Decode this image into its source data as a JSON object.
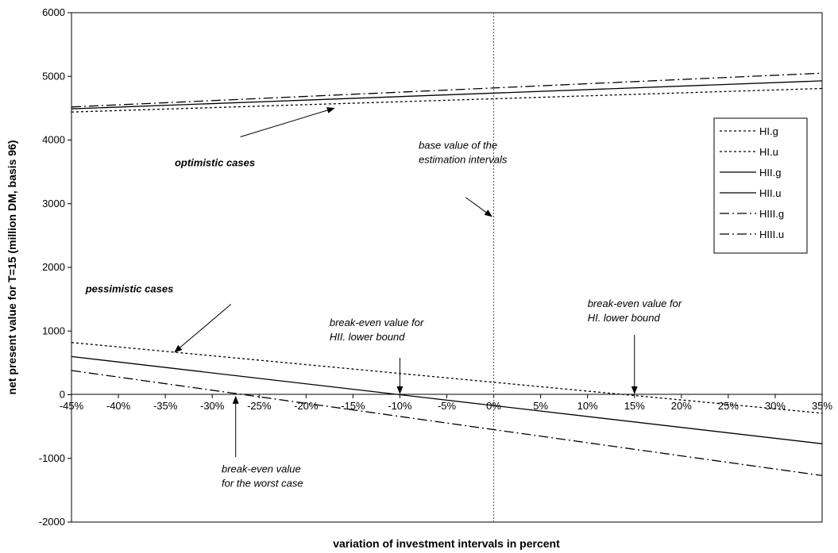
{
  "chart_data": {
    "type": "line",
    "title": "",
    "xlabel": "variation of investment intervals in percent",
    "ylabel": "net present value for T=15 (million DM, basis 96)",
    "x": [
      -45,
      35
    ],
    "xlim": [
      -45,
      35
    ],
    "ylim": [
      -2000,
      6000
    ],
    "x_ticks": [
      -45,
      -40,
      -35,
      -30,
      -25,
      -20,
      -15,
      -10,
      -5,
      0,
      5,
      10,
      15,
      20,
      25,
      30,
      35
    ],
    "x_tick_labels": [
      "-45%",
      "-40%",
      "-35%",
      "-30%",
      "-25%",
      "-20%",
      "-15%",
      "-10%",
      "-5%",
      "0%",
      "5%",
      "10%",
      "15%",
      "20%",
      "25%",
      "30%",
      "35%"
    ],
    "y_ticks": [
      -2000,
      -1000,
      0,
      1000,
      2000,
      3000,
      4000,
      5000,
      6000
    ],
    "y_tick_labels": [
      "-2000",
      "-1000",
      "0",
      "1000",
      "2000",
      "3000",
      "4000",
      "5000",
      "6000"
    ],
    "grid": false,
    "legend_position": "right",
    "series": [
      {
        "name": "HI.g",
        "style": "dotted",
        "values": [
          4440,
          4810
        ]
      },
      {
        "name": "HI.u",
        "style": "dotted",
        "values": [
          820,
          -290
        ]
      },
      {
        "name": "HII.g",
        "style": "solid",
        "values": [
          4490,
          4930
        ]
      },
      {
        "name": "HII.u",
        "style": "solid",
        "values": [
          600,
          -770
        ]
      },
      {
        "name": "HIII.g",
        "style": "dashdot",
        "values": [
          4520,
          5050
        ]
      },
      {
        "name": "HIII.u",
        "style": "dashdot",
        "values": [
          380,
          -1270
        ]
      }
    ],
    "reference_line": {
      "x": 0
    },
    "annotations": [
      {
        "lines": [
          "optimistic cases"
        ],
        "bold": true,
        "text_at": [
          -34,
          3590
        ],
        "arrow_from": [
          -27,
          4050
        ],
        "arrow_to": [
          -17,
          4500
        ]
      },
      {
        "lines": [
          "base value of the",
          "estimation intervals"
        ],
        "bold": false,
        "text_at": [
          -8,
          3860
        ],
        "arrow_from": [
          -3,
          3100
        ],
        "arrow_to": [
          -0.2,
          2800
        ]
      },
      {
        "lines": [
          "pessimistic cases"
        ],
        "bold": true,
        "text_at": [
          -43.5,
          1610
        ],
        "arrow_from": [
          -28,
          1420
        ],
        "arrow_to": [
          -34,
          670
        ]
      },
      {
        "lines": [
          "break-even value for",
          "HII. lower bound"
        ],
        "bold": false,
        "text_at": [
          -17.5,
          1080
        ],
        "arrow_from": [
          -10,
          580
        ],
        "arrow_to": [
          -10,
          20
        ]
      },
      {
        "lines": [
          "break-even value for",
          "HI. lower bound"
        ],
        "bold": false,
        "text_at": [
          10,
          1380
        ],
        "arrow_from": [
          15,
          940
        ],
        "arrow_to": [
          15,
          20
        ]
      },
      {
        "lines": [
          "break-even value",
          "for the worst case"
        ],
        "bold": false,
        "text_at": [
          -29,
          -1220
        ],
        "arrow_from": [
          -27.5,
          -980
        ],
        "arrow_to": [
          -27.5,
          -30
        ]
      }
    ]
  }
}
